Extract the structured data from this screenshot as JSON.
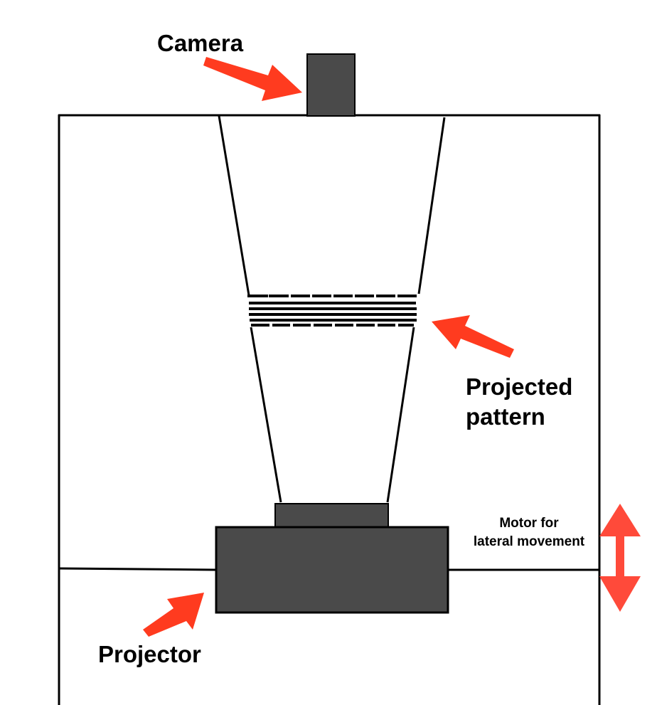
{
  "labels": {
    "camera": "Camera",
    "projected_pattern_line1": "Projected",
    "projected_pattern_line2": "pattern",
    "motor_line1": "Motor for",
    "motor_line2": "lateral movement",
    "projector": "Projector"
  },
  "colors": {
    "device_fill": "#4a4a4a",
    "outline": "#000000",
    "arrow": "#ff3b1f",
    "motor_arrow": "#ff4a3a",
    "background": "#ffffff"
  },
  "icons": {
    "camera_pointer": "arrow-right-down-icon",
    "pattern_pointer": "arrow-left-up-icon",
    "projector_pointer": "arrow-right-up-icon",
    "motor_movement": "double-arrow-vertical-icon"
  }
}
